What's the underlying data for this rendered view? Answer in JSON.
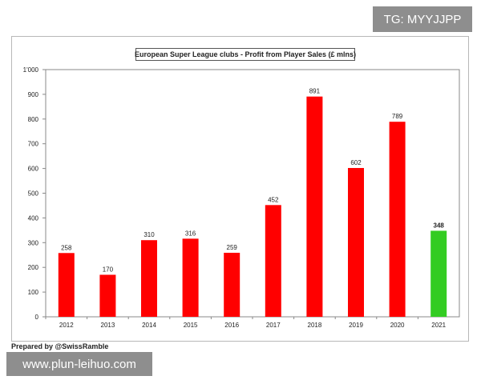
{
  "watermark_top": "TG: MYYJJPP",
  "watermark_bottom": "www.plun-leihuo.com",
  "credit": "Prepared by @SwissRamble",
  "chart_data": {
    "type": "bar",
    "title": "European Super League clubs - Profit from Player Sales (£ mlns)",
    "xlabel": "",
    "ylabel": "",
    "categories": [
      "2012",
      "2013",
      "2014",
      "2015",
      "2016",
      "2017",
      "2018",
      "2019",
      "2020",
      "2021"
    ],
    "values": [
      258,
      170,
      310,
      316,
      259,
      452,
      891,
      602,
      789,
      348
    ],
    "ylim": [
      0,
      1000
    ],
    "yticks": [
      0,
      100,
      200,
      300,
      400,
      500,
      600,
      700,
      800,
      900,
      1000
    ],
    "ytick_labels": [
      "0",
      "100",
      "200",
      "300",
      "400",
      "500",
      "600",
      "700",
      "800",
      "900",
      "1'000"
    ],
    "grid": false,
    "colors": {
      "bar": "#ff0000",
      "highlight_bar": "#33cc22",
      "axis": "#888888"
    },
    "highlight_category": "2021"
  }
}
